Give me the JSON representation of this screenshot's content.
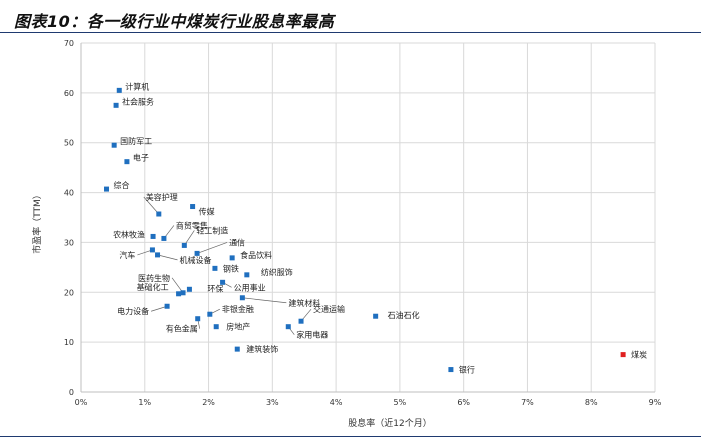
{
  "title": "图表10：各一级行业中煤炭行业股息率最高",
  "chart_data": {
    "type": "scatter",
    "xlabel": "股息率（近12个月）",
    "ylabel": "市盈率（TTM）",
    "xlim": [
      0,
      9
    ],
    "ylim": [
      0,
      70
    ],
    "x_ticks": [
      "0%",
      "1%",
      "2%",
      "3%",
      "4%",
      "5%",
      "6%",
      "7%",
      "8%",
      "9%"
    ],
    "y_ticks": [
      "0",
      "10",
      "20",
      "30",
      "40",
      "50",
      "60",
      "70"
    ],
    "grid": true,
    "colors": {
      "point": "#1f6fbf",
      "highlight": "#e02020",
      "grid": "#d9d9d9",
      "line": "#666666"
    },
    "points": [
      {
        "name": "计算机",
        "x": 0.6,
        "y": 60.5
      },
      {
        "name": "社会服务",
        "x": 0.55,
        "y": 57.5
      },
      {
        "name": "国防军工",
        "x": 0.52,
        "y": 49.5
      },
      {
        "name": "电子",
        "x": 0.72,
        "y": 46.2
      },
      {
        "name": "综合",
        "x": 0.4,
        "y": 40.7
      },
      {
        "name": "美容护理",
        "x": 1.22,
        "y": 35.7
      },
      {
        "name": "传媒",
        "x": 1.75,
        "y": 37.2
      },
      {
        "name": "商贸零售",
        "x": 1.3,
        "y": 30.8
      },
      {
        "name": "农林牧渔",
        "x": 1.13,
        "y": 31.2
      },
      {
        "name": "轻工制造",
        "x": 1.62,
        "y": 29.4
      },
      {
        "name": "通信",
        "x": 1.82,
        "y": 27.8
      },
      {
        "name": "汽车",
        "x": 1.12,
        "y": 28.5
      },
      {
        "name": "机械设备",
        "x": 1.2,
        "y": 27.5
      },
      {
        "name": "食品饮料",
        "x": 2.37,
        "y": 26.9
      },
      {
        "name": "钢铁",
        "x": 2.1,
        "y": 24.8
      },
      {
        "name": "纺织服饰",
        "x": 2.6,
        "y": 23.5
      },
      {
        "name": "医药生物",
        "x": 1.6,
        "y": 19.9
      },
      {
        "name": "基础化工",
        "x": 1.53,
        "y": 19.7
      },
      {
        "name": "环保",
        "x": 1.7,
        "y": 20.6
      },
      {
        "name": "公用事业",
        "x": 2.22,
        "y": 22.0
      },
      {
        "name": "建筑材料",
        "x": 2.53,
        "y": 18.9
      },
      {
        "name": "电力设备",
        "x": 1.35,
        "y": 17.2
      },
      {
        "name": "非银金融",
        "x": 2.02,
        "y": 15.6
      },
      {
        "name": "交通运输",
        "x": 3.45,
        "y": 14.2
      },
      {
        "name": "石油石化",
        "x": 4.62,
        "y": 15.2
      },
      {
        "name": "有色金属",
        "x": 1.83,
        "y": 14.7
      },
      {
        "name": "房地产",
        "x": 2.12,
        "y": 13.1
      },
      {
        "name": "家用电器",
        "x": 3.25,
        "y": 13.1
      },
      {
        "name": "建筑装饰",
        "x": 2.45,
        "y": 8.6
      },
      {
        "name": "银行",
        "x": 5.8,
        "y": 4.5
      },
      {
        "name": "煤炭",
        "x": 8.5,
        "y": 7.5,
        "highlight": true
      }
    ]
  }
}
